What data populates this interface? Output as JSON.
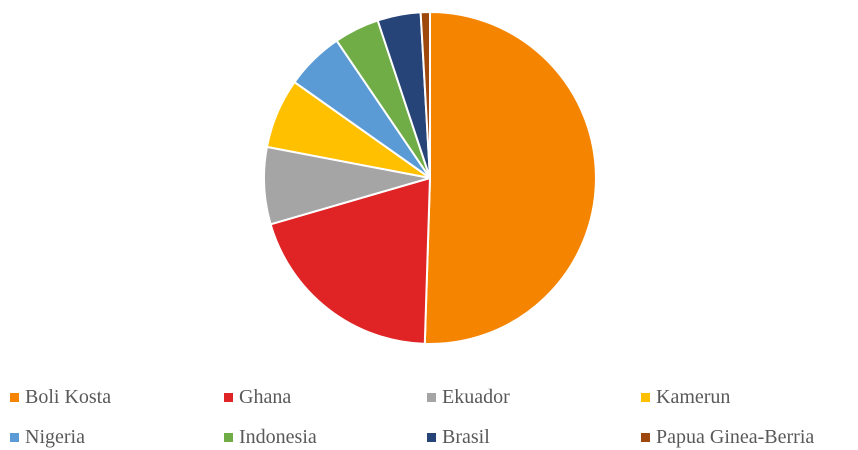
{
  "chart_data": {
    "type": "pie",
    "title": "",
    "categories": [
      "Boli Kosta",
      "Ghana",
      "Ekuador",
      "Kamerun",
      "Nigeria",
      "Indonesia",
      "Brasil",
      "Papua Ginea-Berria"
    ],
    "values": [
      50.5,
      20.0,
      7.5,
      6.8,
      5.7,
      4.4,
      4.2,
      0.9
    ],
    "colors": [
      "#F58400",
      "#E02426",
      "#A5A5A5",
      "#FFC000",
      "#5B9BD5",
      "#70AD47",
      "#264478",
      "#9E480E"
    ],
    "start_angle_deg": 0,
    "direction": "clockwise",
    "legend_position": "bottom"
  }
}
